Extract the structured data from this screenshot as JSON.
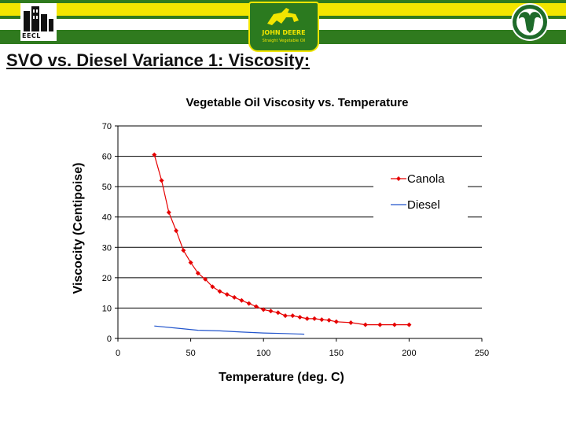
{
  "header": {
    "left_logo_text": "EECL",
    "center_logo_text": "JOHN DEERE",
    "center_logo_subtext": "Straight Vegetable Oil"
  },
  "slide": {
    "title": "SVO vs. Diesel Variance 1: Viscosity:"
  },
  "colors": {
    "banner_green": "#2f7a1e",
    "banner_yellow": "#f2e500",
    "canola": "#e60000",
    "diesel": "#2255cc"
  },
  "chart_data": {
    "type": "line",
    "title": "Vegetable Oil Viscosity vs. Temperature",
    "xlabel": "Temperature (deg. C)",
    "ylabel": "Viscocity (Centipoise)",
    "xlim": [
      0,
      250
    ],
    "ylim": [
      0,
      70
    ],
    "xticks": [
      "0",
      "50",
      "100",
      "150",
      "200",
      "250"
    ],
    "yticks": [
      "0",
      "10",
      "20",
      "30",
      "40",
      "50",
      "60",
      "70"
    ],
    "grid": "horizontal",
    "legend_position": "right",
    "series": [
      {
        "name": "Canola",
        "color": "#e60000",
        "marker": "diamond",
        "x": [
          25,
          30,
          35,
          40,
          45,
          50,
          55,
          60,
          65,
          70,
          75,
          80,
          85,
          90,
          95,
          100,
          105,
          110,
          115,
          120,
          125,
          130,
          135,
          140,
          145,
          150,
          160,
          170,
          180,
          190,
          200
        ],
        "y": [
          60.5,
          52,
          41.5,
          35.5,
          29,
          25,
          21.5,
          19.5,
          17,
          15.5,
          14.5,
          13.5,
          12.5,
          11.5,
          10.5,
          9.5,
          9,
          8.5,
          7.5,
          7.5,
          7,
          6.5,
          6.5,
          6.2,
          6,
          5.5,
          5.2,
          4.5,
          4.5,
          4.5,
          4.5
        ]
      },
      {
        "name": "Diesel",
        "color": "#2255cc",
        "marker": "none",
        "x": [
          25,
          40,
          55,
          70,
          85,
          100,
          115,
          128
        ],
        "y": [
          4.1,
          3.4,
          2.7,
          2.5,
          2.1,
          1.8,
          1.6,
          1.4
        ]
      }
    ]
  }
}
